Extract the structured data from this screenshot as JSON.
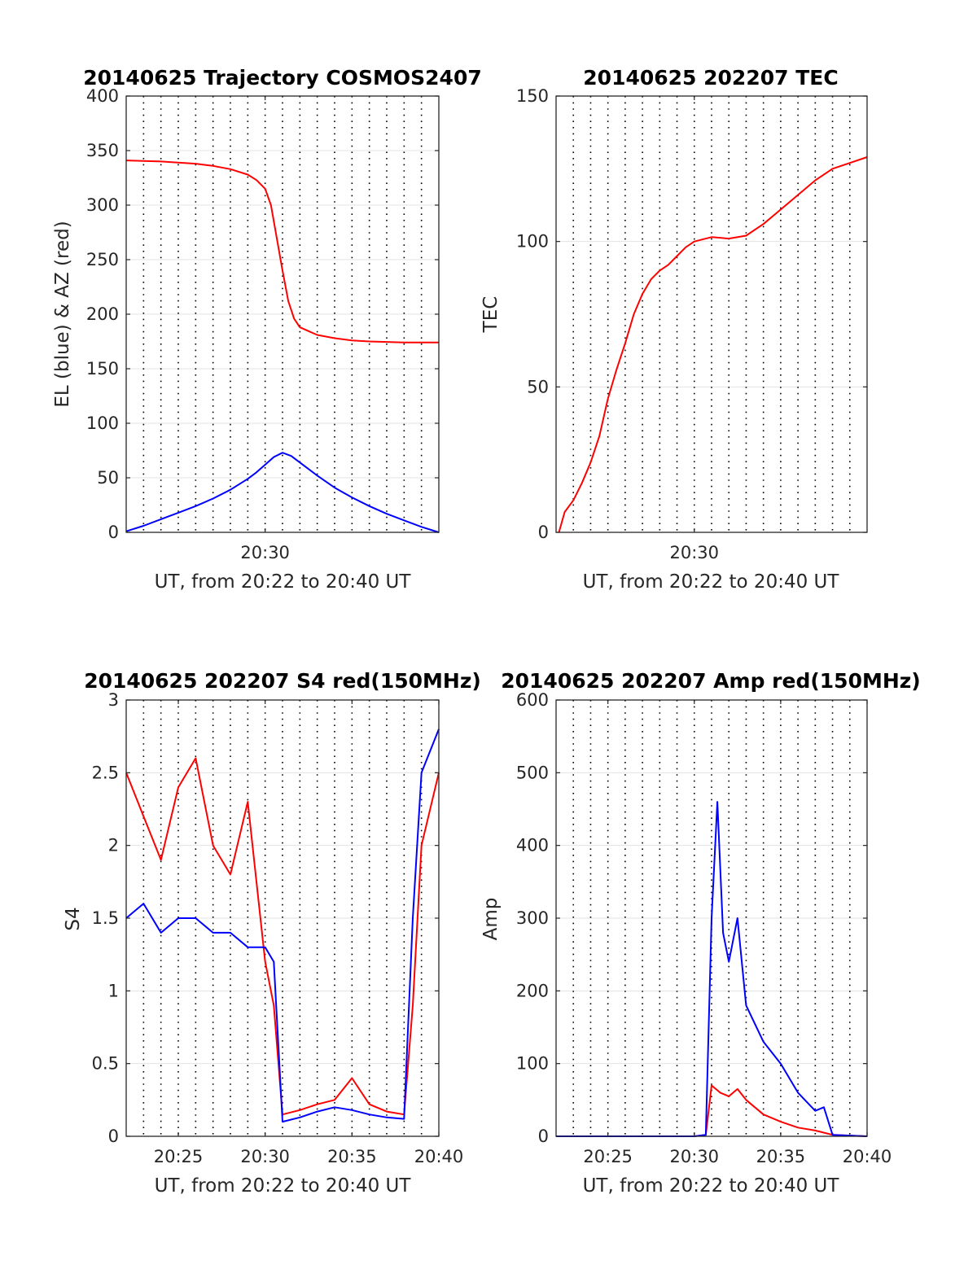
{
  "figure": {
    "panels": [
      {
        "id": "trajectory",
        "title": "20140625 Trajectory COSMOS2407",
        "xlabel": "UT, from 20:22 to 20:40 UT",
        "ylabel": "EL (blue) & AZ (red)"
      },
      {
        "id": "tec",
        "title": "20140625 202207 TEC",
        "xlabel": "UT, from 20:22 to 20:40 UT",
        "ylabel": "TEC"
      },
      {
        "id": "s4",
        "title": "20140625 202207 S4 red(150MHz)",
        "xlabel": "UT, from 20:22 to 20:40 UT",
        "ylabel": "S4"
      },
      {
        "id": "amp",
        "title": "20140625 202207 Amp red(150MHz)",
        "xlabel": "UT, from 20:22 to 20:40 UT",
        "ylabel": "Amp"
      }
    ]
  },
  "chart_data": [
    {
      "type": "line",
      "title": "20140625 Trajectory COSMOS2407",
      "xlabel": "UT, from 20:22 to 20:40 UT",
      "ylabel": "EL (blue) & AZ (red)",
      "xlim": [
        "20:22",
        "20:40"
      ],
      "ylim": [
        0,
        400
      ],
      "xticks": [
        "20:30"
      ],
      "yticks": [
        0,
        50,
        100,
        150,
        200,
        250,
        300,
        350,
        400
      ],
      "grid": "vertical dotted every 1 min, horizontal light",
      "series": [
        {
          "color": "#ff0000",
          "x": [
            "20:22",
            "20:24",
            "20:26",
            "20:27",
            "20:28",
            "20:29",
            "20:29:30",
            "20:30",
            "20:30:20",
            "20:30:40",
            "20:31",
            "20:31:20",
            "20:31:40",
            "20:32",
            "20:33",
            "20:34",
            "20:35",
            "20:36",
            "20:38",
            "20:40"
          ],
          "values": [
            341,
            340,
            338,
            336,
            333,
            328,
            323,
            315,
            300,
            270,
            240,
            212,
            196,
            188,
            181,
            178,
            176,
            175,
            174,
            174
          ]
        },
        {
          "color": "#0000ff",
          "x": [
            "20:22",
            "20:23",
            "20:24",
            "20:25",
            "20:26",
            "20:27",
            "20:28",
            "20:29",
            "20:29:30",
            "20:30",
            "20:30:30",
            "20:31",
            "20:31:30",
            "20:32",
            "20:33",
            "20:34",
            "20:35",
            "20:36",
            "20:37",
            "20:38",
            "20:39",
            "20:40"
          ],
          "values": [
            1,
            6,
            12,
            18,
            24,
            31,
            39,
            49,
            55,
            62,
            69,
            73,
            70,
            64,
            52,
            41,
            32,
            24,
            17,
            11,
            5,
            0
          ]
        }
      ]
    },
    {
      "type": "line",
      "title": "20140625 202207 TEC",
      "xlabel": "UT, from 20:22 to 20:40 UT",
      "ylabel": "TEC",
      "xlim": [
        "20:22",
        "20:40"
      ],
      "ylim": [
        0,
        150
      ],
      "xticks": [
        "20:30"
      ],
      "yticks": [
        0,
        50,
        100,
        150
      ],
      "grid": "vertical dotted every 1 min, horizontal light",
      "series": [
        {
          "color": "#ff0000",
          "x": [
            "20:22:10",
            "20:22:30",
            "20:23",
            "20:23:30",
            "20:24",
            "20:24:30",
            "20:25",
            "20:25:30",
            "20:26",
            "20:26:30",
            "20:27",
            "20:27:30",
            "20:28",
            "20:28:30",
            "20:29",
            "20:29:30",
            "20:30",
            "20:31",
            "20:32",
            "20:33",
            "20:34",
            "20:35",
            "20:36",
            "20:37",
            "20:38",
            "20:39",
            "20:40"
          ],
          "values": [
            0,
            7,
            11,
            17,
            24,
            33,
            46,
            56,
            65,
            75,
            82,
            87,
            90,
            92,
            95,
            98,
            100,
            101.5,
            101,
            102,
            106,
            111,
            116,
            121,
            125,
            127,
            129
          ]
        }
      ]
    },
    {
      "type": "line",
      "title": "20140625 202207 S4 red(150MHz)",
      "xlabel": "UT, from 20:22 to 20:40 UT",
      "ylabel": "S4",
      "xlim": [
        "20:22",
        "20:40"
      ],
      "ylim": [
        0,
        3
      ],
      "xticks": [
        "20:25",
        "20:30",
        "20:35",
        "20:40"
      ],
      "yticks": [
        0,
        0.5,
        1,
        1.5,
        2,
        2.5,
        3
      ],
      "grid": "vertical dotted every 1 min, horizontal light",
      "note": "noisy traces; approximate envelope values",
      "series": [
        {
          "color": "#ff0000",
          "x": [
            "20:22",
            "20:23",
            "20:24",
            "20:25",
            "20:26",
            "20:27",
            "20:28",
            "20:29",
            "20:30",
            "20:30:30",
            "20:31",
            "20:32",
            "20:33",
            "20:34",
            "20:35",
            "20:36",
            "20:37",
            "20:38",
            "20:38:30",
            "20:39",
            "20:40"
          ],
          "values": [
            2.5,
            2.2,
            1.9,
            2.4,
            2.6,
            2.0,
            1.8,
            2.3,
            1.2,
            0.9,
            0.15,
            0.18,
            0.22,
            0.25,
            0.4,
            0.22,
            0.17,
            0.15,
            0.9,
            2.0,
            2.5
          ]
        },
        {
          "color": "#0000ff",
          "x": [
            "20:22",
            "20:23",
            "20:24",
            "20:25",
            "20:26",
            "20:27",
            "20:28",
            "20:29",
            "20:30",
            "20:30:30",
            "20:31",
            "20:32",
            "20:33",
            "20:34",
            "20:35",
            "20:36",
            "20:37",
            "20:38",
            "20:38:30",
            "20:39",
            "20:40"
          ],
          "values": [
            1.5,
            1.6,
            1.4,
            1.5,
            1.5,
            1.4,
            1.4,
            1.3,
            1.3,
            1.2,
            0.1,
            0.13,
            0.17,
            0.2,
            0.18,
            0.15,
            0.13,
            0.12,
            1.5,
            2.5,
            2.8
          ]
        }
      ]
    },
    {
      "type": "line",
      "title": "20140625 202207 Amp red(150MHz)",
      "xlabel": "UT, from 20:22 to 20:40 UT",
      "ylabel": "Amp",
      "xlim": [
        "20:22",
        "20:40"
      ],
      "ylim": [
        0,
        600
      ],
      "xticks": [
        "20:25",
        "20:30",
        "20:35",
        "20:40"
      ],
      "yticks": [
        0,
        100,
        200,
        300,
        400,
        500,
        600
      ],
      "grid": "vertical dotted every 1 min, horizontal light",
      "note": "noisy traces; approximate envelope values",
      "series": [
        {
          "color": "#ff0000",
          "x": [
            "20:22",
            "20:30",
            "20:30:40",
            "20:31",
            "20:31:30",
            "20:32",
            "20:32:30",
            "20:33",
            "20:34",
            "20:35",
            "20:36",
            "20:37",
            "20:38",
            "20:40"
          ],
          "values": [
            0,
            0,
            2,
            70,
            60,
            55,
            65,
            50,
            30,
            20,
            12,
            8,
            2,
            0
          ]
        },
        {
          "color": "#0000ff",
          "x": [
            "20:22",
            "20:30",
            "20:30:40",
            "20:31",
            "20:31:20",
            "20:31:40",
            "20:32",
            "20:32:30",
            "20:33",
            "20:34",
            "20:35",
            "20:36",
            "20:37",
            "20:37:30",
            "20:38",
            "20:40"
          ],
          "values": [
            0,
            0,
            2,
            300,
            460,
            280,
            240,
            300,
            180,
            130,
            100,
            60,
            35,
            40,
            2,
            0
          ]
        }
      ]
    }
  ]
}
